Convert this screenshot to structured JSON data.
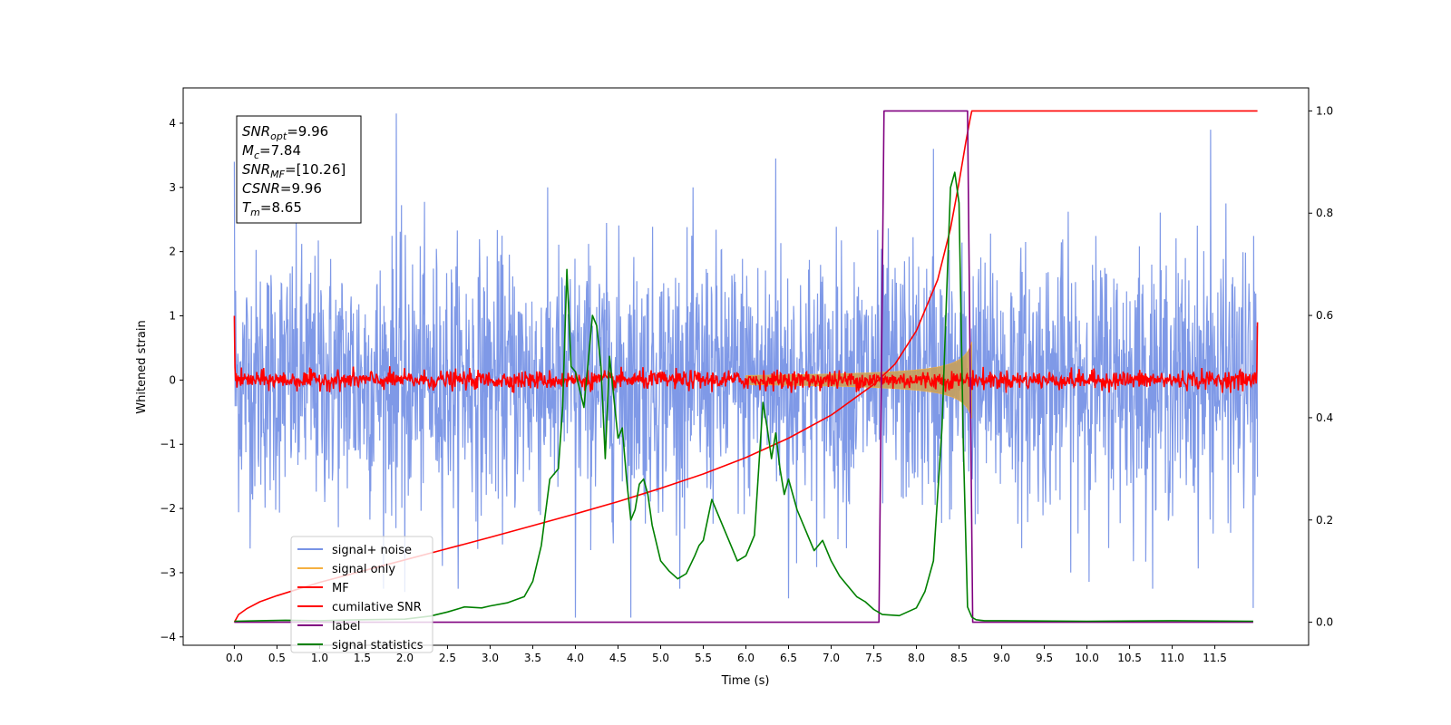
{
  "chart_data": {
    "type": "line",
    "xlabel": "Time (s)",
    "ylabel": "Whitened strain",
    "xlim": [
      -0.6,
      12.6
    ],
    "ylim": [
      -4.13,
      4.55
    ],
    "y2lim": [
      -0.045,
      1.045
    ],
    "x_ticks": [
      "0.0",
      "0.5",
      "1.0",
      "1.5",
      "2.0",
      "2.5",
      "3.0",
      "3.5",
      "4.0",
      "4.5",
      "5.0",
      "5.5",
      "6.0",
      "6.5",
      "7.0",
      "7.5",
      "8.0",
      "8.5",
      "9.0",
      "9.5",
      "10.0",
      "10.5",
      "11.0",
      "11.5"
    ],
    "y_ticks": [
      "−4",
      "−3",
      "−2",
      "−1",
      "0",
      "1",
      "2",
      "3",
      "4"
    ],
    "y2_ticks": [
      "0.0",
      "0.2",
      "0.4",
      "0.6",
      "0.8",
      "1.0"
    ],
    "info_box": {
      "lines": [
        {
          "sym": "SNR",
          "sub": "opt",
          "text": "=9.96"
        },
        {
          "sym": "M",
          "sub": "c",
          "text": "=7.84"
        },
        {
          "sym": "SNR",
          "sub": "MF",
          "text": "=[10.26]"
        },
        {
          "sym": "CSNR",
          "sub": "",
          "text": "=9.96"
        },
        {
          "sym": "T",
          "sub": "m",
          "text": "=8.65"
        }
      ]
    },
    "legend_position": "lower-left",
    "series": [
      {
        "name": "signal+ noise",
        "color": "#7893e6",
        "axis": "left",
        "kind": "noise",
        "x_range": [
          0,
          12
        ],
        "amplitude_std": 1.0,
        "peaks": [
          [
            1.9,
            4.15
          ],
          [
            8.2,
            3.6
          ],
          [
            11.45,
            3.9
          ],
          [
            0.0,
            3.4
          ],
          [
            6.35,
            3.45
          ]
        ],
        "troughs": [
          [
            4.0,
            -3.7
          ],
          [
            4.65,
            -3.7
          ],
          [
            11.95,
            -3.55
          ],
          [
            6.5,
            -3.4
          ],
          [
            2.0,
            -3.3
          ]
        ]
      },
      {
        "name": "signal only",
        "color": "#f5b041",
        "axis": "left",
        "kind": "chirp_envelope",
        "x_range": [
          0,
          8.65
        ],
        "peak_amplitude": 0.6
      },
      {
        "name": "MF",
        "color": "#ff0000",
        "axis": "left",
        "kind": "mf_band",
        "x_range": [
          0,
          12
        ],
        "amplitude": 0.12,
        "endpoints": [
          [
            0.0,
            1.0
          ],
          [
            11.97,
            0.9
          ]
        ]
      },
      {
        "name": "cumilative SNR",
        "color": "#ff0000",
        "axis": "right",
        "x": [
          0.0,
          0.05,
          0.15,
          0.3,
          0.5,
          1.0,
          1.5,
          2.0,
          2.5,
          3.0,
          3.5,
          4.0,
          4.5,
          5.0,
          5.5,
          6.0,
          6.5,
          7.0,
          7.5,
          7.75,
          8.0,
          8.25,
          8.4,
          8.5,
          8.58,
          8.63,
          8.65,
          8.7,
          12.0
        ],
        "values": [
          0.0,
          0.015,
          0.027,
          0.04,
          0.052,
          0.078,
          0.1,
          0.122,
          0.144,
          0.166,
          0.189,
          0.212,
          0.236,
          0.262,
          0.29,
          0.322,
          0.36,
          0.405,
          0.465,
          0.505,
          0.57,
          0.67,
          0.77,
          0.86,
          0.94,
          0.985,
          1.0,
          1.0,
          1.0
        ]
      },
      {
        "name": "label",
        "color": "#800080",
        "axis": "right",
        "x": [
          0.0,
          7.56,
          7.62,
          8.6,
          8.66,
          11.95
        ],
        "values": [
          0.0,
          0.0,
          1.0,
          1.0,
          0.0,
          0.0
        ]
      },
      {
        "name": "signal statistics",
        "color": "#008000",
        "axis": "right",
        "x": [
          0.0,
          0.3,
          0.6,
          1.0,
          1.5,
          2.0,
          2.3,
          2.5,
          2.7,
          2.9,
          3.0,
          3.2,
          3.4,
          3.5,
          3.6,
          3.7,
          3.8,
          3.85,
          3.9,
          3.95,
          4.0,
          4.1,
          4.2,
          4.25,
          4.3,
          4.35,
          4.4,
          4.5,
          4.55,
          4.6,
          4.65,
          4.7,
          4.75,
          4.8,
          4.85,
          4.9,
          5.0,
          5.1,
          5.2,
          5.3,
          5.4,
          5.45,
          5.5,
          5.6,
          5.7,
          5.8,
          5.9,
          6.0,
          6.1,
          6.2,
          6.25,
          6.3,
          6.35,
          6.4,
          6.45,
          6.5,
          6.6,
          6.7,
          6.8,
          6.9,
          7.0,
          7.1,
          7.2,
          7.3,
          7.4,
          7.5,
          7.6,
          7.8,
          8.0,
          8.1,
          8.2,
          8.3,
          8.35,
          8.4,
          8.45,
          8.5,
          8.55,
          8.6,
          8.65,
          8.7,
          8.75,
          8.8,
          9.0,
          10.0,
          11.0,
          11.95
        ],
        "values": [
          0.002,
          0.003,
          0.004,
          0.003,
          0.005,
          0.006,
          0.012,
          0.02,
          0.03,
          0.028,
          0.032,
          0.038,
          0.05,
          0.08,
          0.15,
          0.28,
          0.3,
          0.42,
          0.69,
          0.5,
          0.49,
          0.42,
          0.6,
          0.58,
          0.5,
          0.32,
          0.52,
          0.36,
          0.38,
          0.28,
          0.2,
          0.22,
          0.27,
          0.28,
          0.25,
          0.19,
          0.12,
          0.1,
          0.085,
          0.095,
          0.13,
          0.15,
          0.16,
          0.24,
          0.2,
          0.16,
          0.12,
          0.13,
          0.17,
          0.43,
          0.38,
          0.32,
          0.37,
          0.3,
          0.25,
          0.28,
          0.22,
          0.18,
          0.14,
          0.16,
          0.12,
          0.09,
          0.07,
          0.05,
          0.04,
          0.025,
          0.015,
          0.013,
          0.028,
          0.06,
          0.12,
          0.38,
          0.62,
          0.85,
          0.88,
          0.82,
          0.35,
          0.03,
          0.01,
          0.005,
          0.004,
          0.003,
          0.003,
          0.002,
          0.003,
          0.002
        ]
      }
    ]
  }
}
